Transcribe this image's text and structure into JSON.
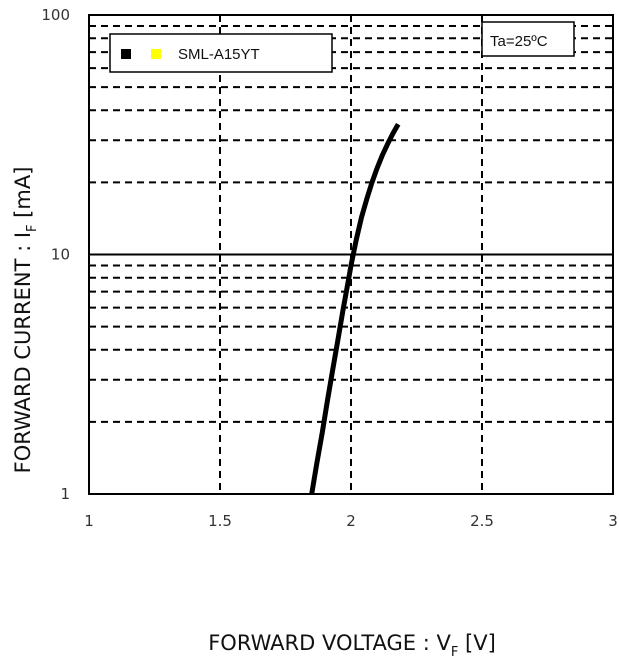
{
  "chart_data": {
    "type": "line",
    "xscale": "linear",
    "yscale": "log",
    "xlim": [
      1,
      3
    ],
    "ylim": [
      1,
      100
    ],
    "xticks": [
      1,
      1.5,
      2,
      2.5,
      3
    ],
    "xtick_labels": [
      "1",
      "1.5",
      "2",
      "2.5",
      "3"
    ],
    "yticks": [
      1,
      10,
      100
    ],
    "ytick_labels": [
      "1",
      "10",
      "100"
    ],
    "xlabel": {
      "main": "FORWARD VOLTAGE : V",
      "sub": "F",
      "unit": " [V]"
    },
    "ylabel": {
      "main": "FORWARD CURRENT : I",
      "sub": "F",
      "unit": " [mA]"
    },
    "grid": "dashed",
    "legend": {
      "position": "top-left",
      "label": "SML-A15YT",
      "marker_colors": [
        "#000000",
        "#ffff00"
      ]
    },
    "annotation": "Ta=25ºC",
    "series": [
      {
        "name": "SML-A15YT",
        "color": "#000000",
        "x": [
          1.85,
          1.87,
          1.89,
          1.91,
          1.93,
          1.95,
          1.97,
          1.99,
          2.0,
          2.02,
          2.04,
          2.06,
          2.08,
          2.1,
          2.12,
          2.14,
          2.16,
          2.18
        ],
        "y": [
          1.0,
          1.35,
          1.8,
          2.45,
          3.3,
          4.4,
          5.9,
          7.8,
          9.0,
          11.5,
          14.3,
          17.0,
          20.0,
          23.0,
          26.0,
          29.0,
          32.0,
          35.0
        ]
      }
    ]
  }
}
